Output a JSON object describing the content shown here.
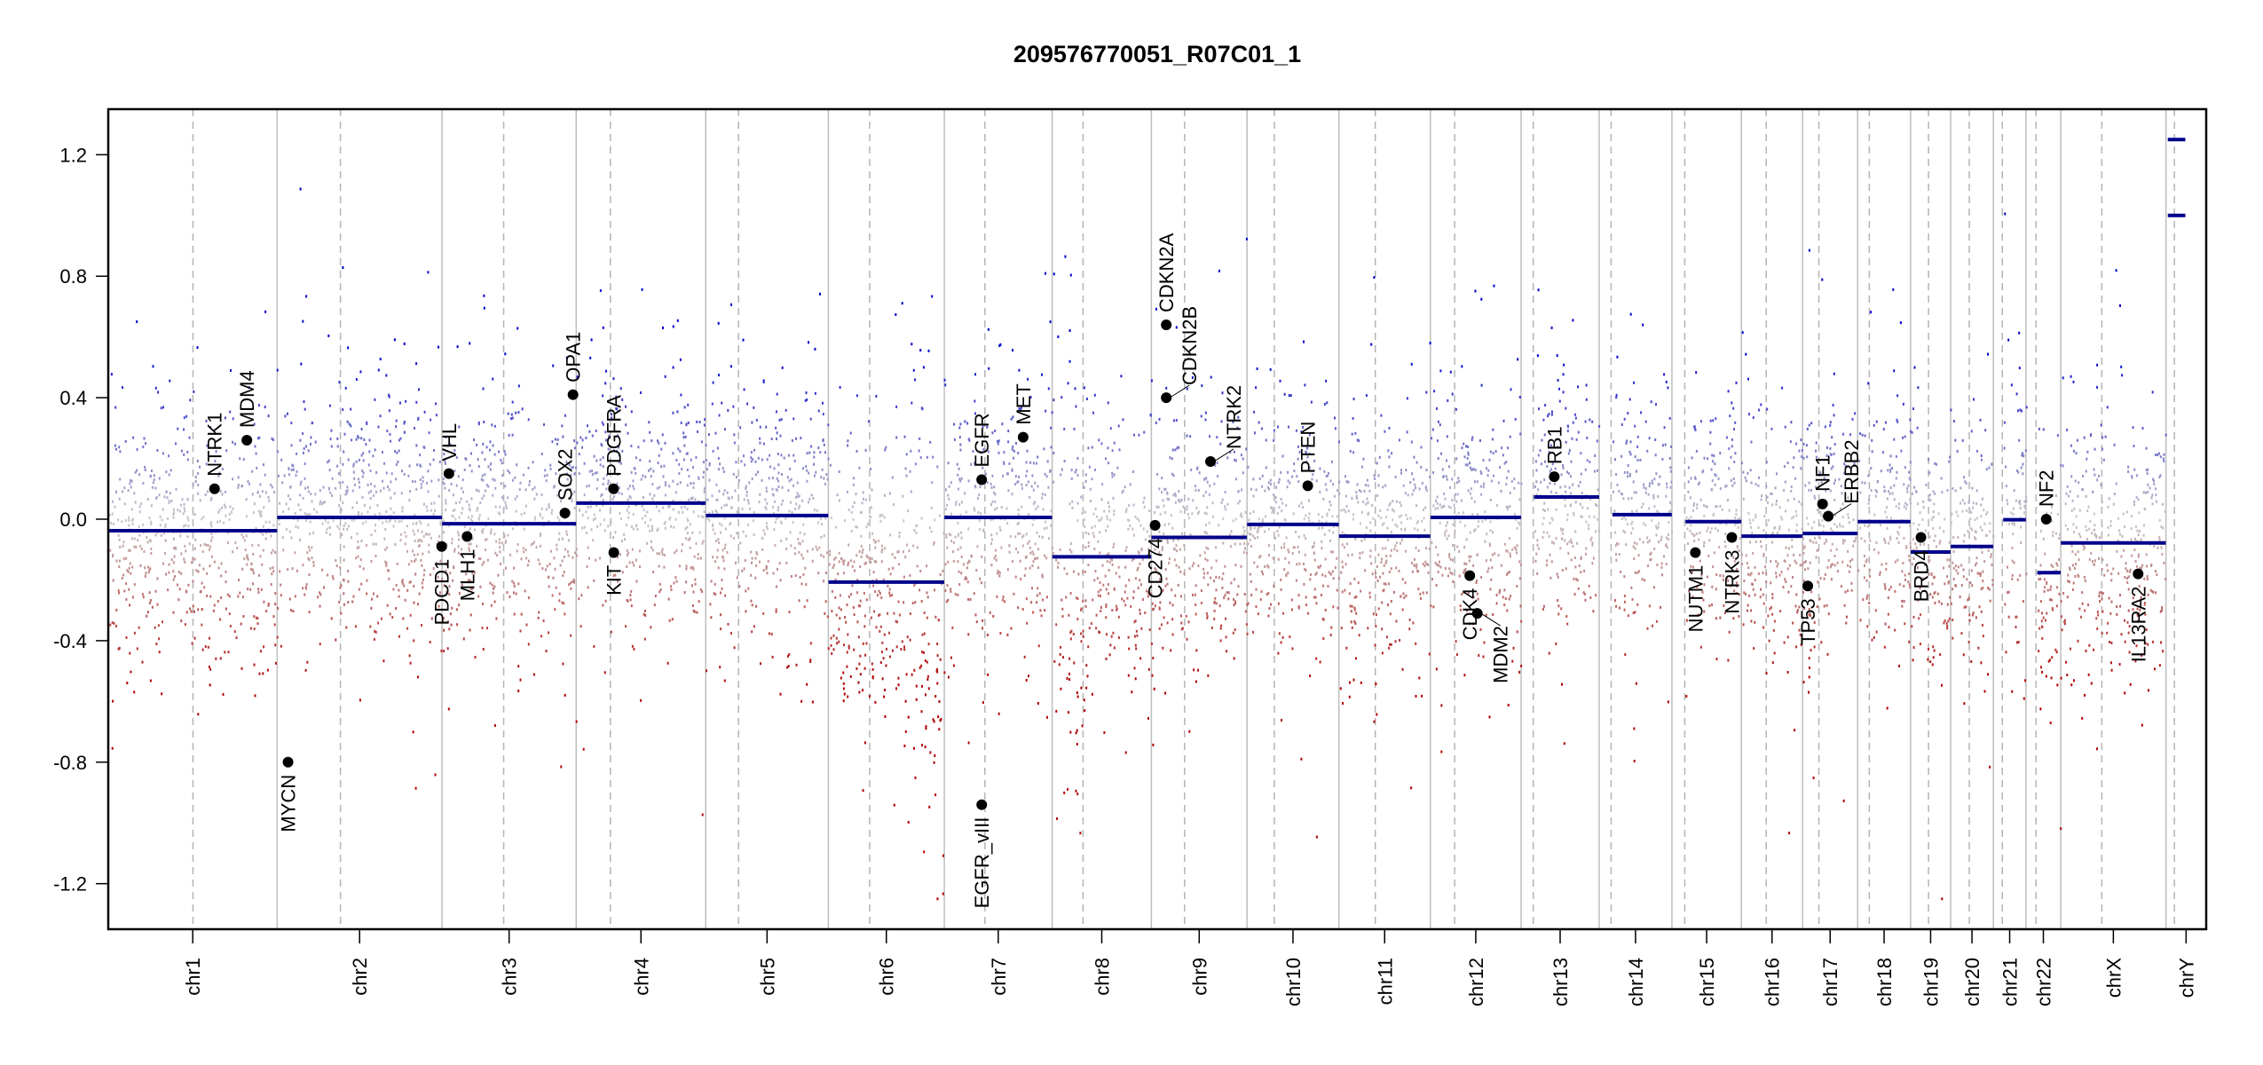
{
  "chart_data": {
    "type": "scatter",
    "title": "209576770051_R07C01_1",
    "xlabel": "",
    "ylabel": "",
    "ylim": [
      -1.35,
      1.35
    ],
    "probe_clip": [
      -1.25,
      1.25
    ],
    "grid": false,
    "yticks": [
      {
        "value": -1.2,
        "label": "-1.2"
      },
      {
        "value": -0.8,
        "label": "-0.8"
      },
      {
        "value": -0.4,
        "label": "-0.4"
      },
      {
        "value": 0.0,
        "label": "0.0"
      },
      {
        "value": 0.4,
        "label": "0.4"
      },
      {
        "value": 0.8,
        "label": "0.8"
      },
      {
        "value": 1.2,
        "label": "1.2"
      }
    ],
    "colors": {
      "gain": "#0000cd",
      "loss": "#b00000",
      "neutral": "#c8c8c8",
      "segment": "#00008b",
      "gene": "#000000",
      "chr_boundary": "#bebebe",
      "centromere": "#b4b4b4"
    },
    "chromosomes": [
      {
        "name": "chr1",
        "length_mb": 249.25,
        "centromere_mb": 125.0
      },
      {
        "name": "chr2",
        "length_mb": 243.2,
        "centromere_mb": 93.3
      },
      {
        "name": "chr3",
        "length_mb": 198.02,
        "centromere_mb": 91.0
      },
      {
        "name": "chr4",
        "length_mb": 191.15,
        "centromere_mb": 50.4
      },
      {
        "name": "chr5",
        "length_mb": 180.92,
        "centromere_mb": 48.4
      },
      {
        "name": "chr6",
        "length_mb": 171.12,
        "centromere_mb": 61.0
      },
      {
        "name": "chr7",
        "length_mb": 159.14,
        "centromere_mb": 59.9
      },
      {
        "name": "chr8",
        "length_mb": 146.36,
        "centromere_mb": 45.6
      },
      {
        "name": "chr9",
        "length_mb": 141.21,
        "centromere_mb": 49.0
      },
      {
        "name": "chr10",
        "length_mb": 135.53,
        "centromere_mb": 40.2
      },
      {
        "name": "chr11",
        "length_mb": 135.01,
        "centromere_mb": 53.7
      },
      {
        "name": "chr12",
        "length_mb": 133.85,
        "centromere_mb": 35.8
      },
      {
        "name": "chr13",
        "length_mb": 115.17,
        "centromere_mb": 17.9
      },
      {
        "name": "chr14",
        "length_mb": 107.35,
        "centromere_mb": 17.6
      },
      {
        "name": "chr15",
        "length_mb": 102.53,
        "centromere_mb": 19.0
      },
      {
        "name": "chr16",
        "length_mb": 90.35,
        "centromere_mb": 36.6
      },
      {
        "name": "chr17",
        "length_mb": 81.2,
        "centromere_mb": 24.0
      },
      {
        "name": "chr18",
        "length_mb": 78.08,
        "centromere_mb": 17.2
      },
      {
        "name": "chr19",
        "length_mb": 59.13,
        "centromere_mb": 26.5
      },
      {
        "name": "chr20",
        "length_mb": 63.03,
        "centromere_mb": 27.5
      },
      {
        "name": "chr21",
        "length_mb": 48.13,
        "centromere_mb": 13.2
      },
      {
        "name": "chr22",
        "length_mb": 51.3,
        "centromere_mb": 14.7
      },
      {
        "name": "chrX",
        "length_mb": 155.27,
        "centromere_mb": 60.6
      },
      {
        "name": "chrY",
        "length_mb": 59.37,
        "centromere_mb": 12.5
      }
    ],
    "segments": [
      {
        "chr": "chr1",
        "start_mb": 0.8,
        "end_mb": 249.2,
        "value": -0.038
      },
      {
        "chr": "chr2",
        "start_mb": 0.1,
        "end_mb": 243.1,
        "value": 0.006
      },
      {
        "chr": "chr3",
        "start_mb": 0.2,
        "end_mb": 197.9,
        "value": -0.015
      },
      {
        "chr": "chr4",
        "start_mb": 0.1,
        "end_mb": 191.0,
        "value": 0.053
      },
      {
        "chr": "chr5",
        "start_mb": 0.1,
        "end_mb": 180.8,
        "value": 0.012
      },
      {
        "chr": "chr6",
        "start_mb": 0.2,
        "end_mb": 171.0,
        "value": -0.207
      },
      {
        "chr": "chr7",
        "start_mb": 0.1,
        "end_mb": 159.0,
        "value": 0.006
      },
      {
        "chr": "chr8",
        "start_mb": 0.2,
        "end_mb": 146.2,
        "value": -0.124
      },
      {
        "chr": "chr9",
        "start_mb": 0.1,
        "end_mb": 141.0,
        "value": -0.06
      },
      {
        "chr": "chr10",
        "start_mb": 0.1,
        "end_mb": 135.4,
        "value": -0.017
      },
      {
        "chr": "chr11",
        "start_mb": 0.2,
        "end_mb": 134.9,
        "value": -0.056
      },
      {
        "chr": "chr12",
        "start_mb": 0.2,
        "end_mb": 133.7,
        "value": 0.006
      },
      {
        "chr": "chr13",
        "start_mb": 19.0,
        "end_mb": 115.1,
        "value": 0.073
      },
      {
        "chr": "chr14",
        "start_mb": 19.5,
        "end_mb": 107.2,
        "value": 0.015
      },
      {
        "chr": "chr15",
        "start_mb": 20.0,
        "end_mb": 102.4,
        "value": -0.008
      },
      {
        "chr": "chr16",
        "start_mb": 0.1,
        "end_mb": 90.2,
        "value": -0.056
      },
      {
        "chr": "chr17",
        "start_mb": 0.1,
        "end_mb": 81.1,
        "value": -0.047
      },
      {
        "chr": "chr18",
        "start_mb": 0.1,
        "end_mb": 78.0,
        "value": -0.008
      },
      {
        "chr": "chr19",
        "start_mb": 0.2,
        "end_mb": 59.0,
        "value": -0.108
      },
      {
        "chr": "chr20",
        "start_mb": 0.1,
        "end_mb": 62.9,
        "value": -0.09
      },
      {
        "chr": "chr21",
        "start_mb": 14.5,
        "end_mb": 48.0,
        "value": -0.002
      },
      {
        "chr": "chr22",
        "start_mb": 16.5,
        "end_mb": 51.2,
        "value": -0.176
      },
      {
        "chr": "chrX",
        "start_mb": 0.2,
        "end_mb": 155.1,
        "value": -0.078
      },
      {
        "chr": "chrY",
        "start_mb": 2.7,
        "end_mb": 28.6,
        "value": 1.25
      },
      {
        "chr": "chrY",
        "start_mb": 2.7,
        "end_mb": 28.6,
        "value": 1.0
      }
    ],
    "genes": [
      {
        "name": "NTRK1",
        "chr": "chr1",
        "pos_mb": 156.8,
        "value": 0.1
      },
      {
        "name": "MDM4",
        "chr": "chr1",
        "pos_mb": 204.5,
        "value": 0.26
      },
      {
        "name": "MYCN",
        "chr": "chr2",
        "pos_mb": 16.0,
        "value": -0.8
      },
      {
        "name": "PDCD1",
        "chr": "chr2",
        "pos_mb": 242.8,
        "value": -0.09
      },
      {
        "name": "VHL",
        "chr": "chr3",
        "pos_mb": 10.2,
        "value": 0.15
      },
      {
        "name": "MLH1",
        "chr": "chr3",
        "pos_mb": 37.0,
        "value": -0.057
      },
      {
        "name": "SOX2",
        "chr": "chr3",
        "pos_mb": 181.4,
        "value": 0.02
      },
      {
        "name": "OPA1",
        "chr": "chr3",
        "pos_mb": 193.3,
        "value": 0.41
      },
      {
        "name": "PDGFRA",
        "chr": "chr4",
        "pos_mb": 55.1,
        "value": 0.1
      },
      {
        "name": "KIT",
        "chr": "chr4",
        "pos_mb": 55.5,
        "value": -0.11
      },
      {
        "name": "EGFR",
        "chr": "chr7",
        "pos_mb": 55.1,
        "value": 0.13
      },
      {
        "name": "EGFR_vIII",
        "chr": "chr7",
        "pos_mb": 55.2,
        "value": -0.94
      },
      {
        "name": "MET",
        "chr": "chr7",
        "pos_mb": 116.3,
        "value": 0.27
      },
      {
        "name": "CD274",
        "chr": "chr9",
        "pos_mb": 5.5,
        "value": -0.02
      },
      {
        "name": "CDKN2A",
        "chr": "chr9",
        "pos_mb": 21.97,
        "value": 0.64
      },
      {
        "name": "CDKN2B",
        "chr": "chr9",
        "pos_mb": 22.0,
        "value": 0.4
      },
      {
        "name": "NTRK2",
        "chr": "chr9",
        "pos_mb": 87.3,
        "value": 0.19
      },
      {
        "name": "PTEN",
        "chr": "chr10",
        "pos_mb": 89.6,
        "value": 0.11
      },
      {
        "name": "CDK4",
        "chr": "chr12",
        "pos_mb": 58.1,
        "value": -0.186
      },
      {
        "name": "MDM2",
        "chr": "chr12",
        "pos_mb": 69.2,
        "value": -0.31
      },
      {
        "name": "RB1",
        "chr": "chr13",
        "pos_mb": 48.9,
        "value": 0.14
      },
      {
        "name": "NUTM1",
        "chr": "chr15",
        "pos_mb": 34.6,
        "value": -0.11
      },
      {
        "name": "NTRK3",
        "chr": "chr15",
        "pos_mb": 88.4,
        "value": -0.06
      },
      {
        "name": "TP53",
        "chr": "chr17",
        "pos_mb": 7.6,
        "value": -0.22
      },
      {
        "name": "NF1",
        "chr": "chr17",
        "pos_mb": 29.4,
        "value": 0.05
      },
      {
        "name": "ERBB2",
        "chr": "chr17",
        "pos_mb": 37.8,
        "value": 0.01
      },
      {
        "name": "BRD4",
        "chr": "chr19",
        "pos_mb": 15.3,
        "value": -0.06
      },
      {
        "name": "NF2",
        "chr": "chr22",
        "pos_mb": 29.9,
        "value": 0.0
      },
      {
        "name": "IL13RA2",
        "chr": "chrX",
        "pos_mb": 114.2,
        "value": -0.18
      }
    ]
  }
}
